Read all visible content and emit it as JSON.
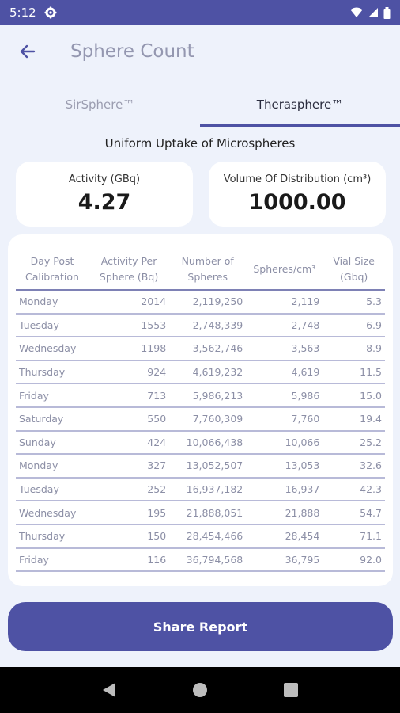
{
  "status_bar": {
    "time": "5:12",
    "icons": [
      "gear-icon",
      "wifi-icon",
      "cellular-icon",
      "battery-icon"
    ]
  },
  "app_bar": {
    "title": "Sphere Count",
    "back_icon": "arrow-left-icon"
  },
  "tabs": [
    {
      "label": "SirSphere™",
      "active": false
    },
    {
      "label": "Therasphere™",
      "active": true
    }
  ],
  "subtitle": "Uniform Uptake of Microspheres",
  "cards": {
    "activity": {
      "label": "Activity (GBq)",
      "value": "4.27"
    },
    "volume": {
      "label": "Volume Of Distribution (cm³)",
      "value": "1000.00"
    }
  },
  "table": {
    "headers": [
      "Day Post Calibration",
      "Activity Per Sphere (Bq)",
      "Number of Spheres",
      "Spheres/cm³",
      "Vial Size (Gbq)"
    ],
    "rows": [
      [
        "Monday",
        "2014",
        "2,119,250",
        "2,119",
        "5.3"
      ],
      [
        "Tuesday",
        "1553",
        "2,748,339",
        "2,748",
        "6.9"
      ],
      [
        "Wednesday",
        "1198",
        "3,562,746",
        "3,563",
        "8.9"
      ],
      [
        "Thursday",
        "924",
        "4,619,232",
        "4,619",
        "11.5"
      ],
      [
        "Friday",
        "713",
        "5,986,213",
        "5,986",
        "15.0"
      ],
      [
        "Saturday",
        "550",
        "7,760,309",
        "7,760",
        "19.4"
      ],
      [
        "Sunday",
        "424",
        "10,066,438",
        "10,066",
        "25.2"
      ],
      [
        "Monday",
        "327",
        "13,052,507",
        "13,053",
        "32.6"
      ],
      [
        "Tuesday",
        "252",
        "16,937,182",
        "16,937",
        "42.3"
      ],
      [
        "Wednesday",
        "195",
        "21,888,051",
        "21,888",
        "54.7"
      ],
      [
        "Thursday",
        "150",
        "28,454,466",
        "28,454",
        "71.1"
      ],
      [
        "Friday",
        "116",
        "36,794,568",
        "36,795",
        "92.0"
      ]
    ]
  },
  "share_button": {
    "label": "Share Report"
  },
  "nav_bar": {
    "icons": [
      "back-triangle-icon",
      "home-circle-icon",
      "recents-square-icon"
    ]
  },
  "colors": {
    "primary": "#4e52a4",
    "background": "#eef2fb",
    "card": "#ffffff"
  }
}
